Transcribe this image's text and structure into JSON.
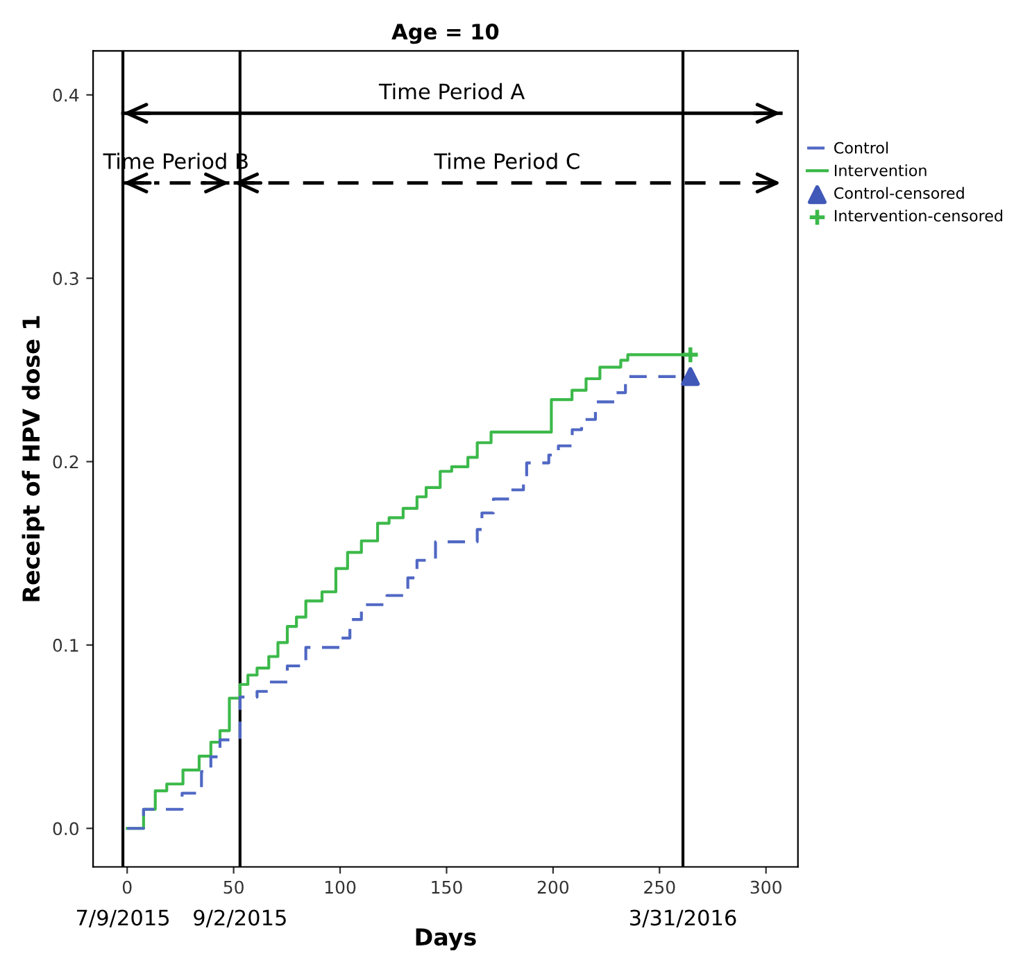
{
  "chart_data": {
    "type": "step",
    "title": "Age = 10",
    "xlabel": "Days",
    "ylabel": "Receipt of HPV dose 1",
    "xlim": [
      -16,
      315
    ],
    "xticks": [
      0,
      50,
      100,
      150,
      200,
      250,
      300
    ],
    "ylim": [
      -0.021,
      0.424
    ],
    "yticks": [
      {
        "value": 0,
        "label": "0.0"
      },
      {
        "value": 0.1,
        "label": "0.1"
      },
      {
        "value": 0.2,
        "label": "0.2"
      },
      {
        "value": 0.3,
        "label": "0.3"
      },
      {
        "value": 0.4,
        "label": "0.4"
      }
    ],
    "series": [
      {
        "name": "Control",
        "color": "#5068c4",
        "line_style": "dashed",
        "x": [
          0,
          7.7,
          25.8,
          34.9,
          39.3,
          43.6,
          53,
          61,
          66.5,
          75.2,
          83.9,
          100.2,
          104.6,
          110,
          122,
          131.8,
          136.1,
          144.8,
          164.4,
          166.6,
          172,
          179.6,
          186.1,
          187.6,
          198,
          202.5,
          209,
          213.4,
          219.9,
          229.7,
          234,
          264.5
        ],
        "values": [
          0,
          0.0104,
          0.0192,
          0.031,
          0.039,
          0.0483,
          0.0716,
          0.0747,
          0.0798,
          0.0886,
          0.0987,
          0.1038,
          0.1139,
          0.122,
          0.127,
          0.1366,
          0.1462,
          0.1563,
          0.163,
          0.172,
          0.1796,
          0.1846,
          0.1909,
          0.1993,
          0.2036,
          0.2086,
          0.2174,
          0.223,
          0.2326,
          0.2376,
          0.2464,
          0.2464
        ]
      },
      {
        "name": "Intervention",
        "color": "#3cb94a",
        "line_style": "solid",
        "x": [
          0,
          7.7,
          13.2,
          18.6,
          26.2,
          33.8,
          39.3,
          43.6,
          48,
          53,
          56.7,
          61,
          66.5,
          70.8,
          75.2,
          79.5,
          83.9,
          91.5,
          98,
          103.5,
          110,
          117.6,
          123,
          129.6,
          136.1,
          140.4,
          147,
          152.4,
          160,
          164.4,
          170.9,
          199.2,
          208.9,
          215.5,
          222,
          231.8,
          235.1,
          264.5
        ],
        "values": [
          0,
          0.0104,
          0.0205,
          0.0242,
          0.0318,
          0.0394,
          0.047,
          0.0533,
          0.071,
          0.0785,
          0.0836,
          0.0874,
          0.0937,
          0.1013,
          0.1101,
          0.1152,
          0.124,
          0.129,
          0.1417,
          0.1505,
          0.1568,
          0.1664,
          0.1694,
          0.1745,
          0.1808,
          0.1859,
          0.1947,
          0.1972,
          0.2023,
          0.2103,
          0.2161,
          0.2338,
          0.2389,
          0.2452,
          0.2515,
          0.2553,
          0.2583,
          0.2583
        ]
      },
      {
        "name": "Control-censored",
        "type": "scatter",
        "color": "#4058b8",
        "marker": "triangle",
        "x": [
          264.5
        ],
        "values": [
          0.2464
        ]
      },
      {
        "name": "Intervention-censored",
        "type": "scatter",
        "color": "#3cb94a",
        "marker": "cross",
        "x": [
          264.5
        ],
        "values": [
          0.2583
        ]
      },
      {
        "type": "line",
        "color": "#000000",
        "line_style": "solid",
        "x": [
          -2,
          307
        ],
        "values": [
          0.39,
          0.39
        ]
      },
      {
        "type": "line",
        "color": "#000000",
        "line_style": "dashdot",
        "x": [
          -2,
          48
        ],
        "values": [
          0.352,
          0.352
        ]
      },
      {
        "type": "line",
        "color": "#000000",
        "line_style": "dashed",
        "x": [
          50,
          307
        ],
        "values": [
          0.352,
          0.352
        ]
      }
    ],
    "ref_lines": [
      {
        "axis": "x",
        "value": -2,
        "color": "#000000"
      },
      {
        "axis": "x",
        "value": 53,
        "color": "#000000"
      },
      {
        "axis": "x",
        "value": 261,
        "color": "#000000"
      }
    ],
    "annotations": [
      "Time Period A",
      "Time Period B",
      "Time Period C",
      "7/9/2015",
      "9/2/2015",
      "3/31/2016"
    ],
    "legend": "right",
    "grid": false
  }
}
